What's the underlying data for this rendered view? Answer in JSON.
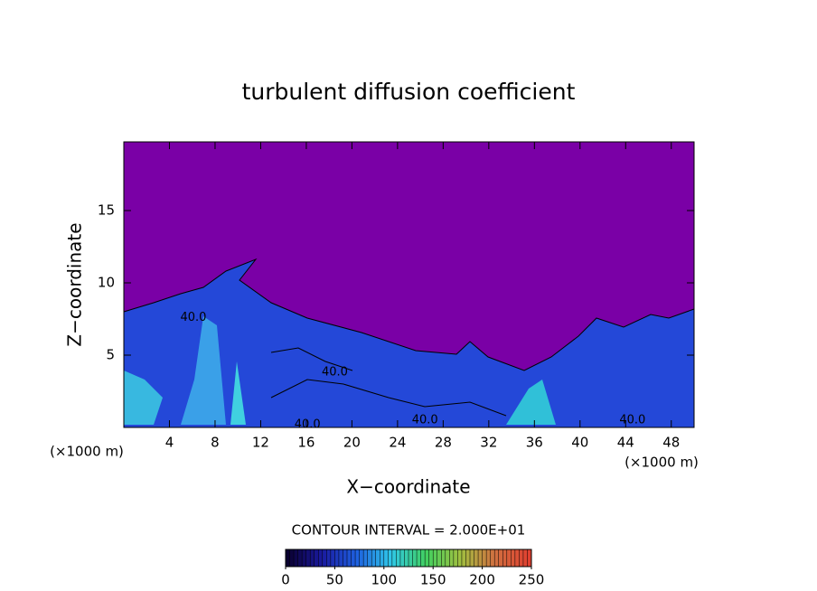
{
  "chart_data": {
    "type": "contour",
    "title": "turbulent diffusion coefficient",
    "xlabel": "X−coordinate",
    "ylabel": "Z−coordinate",
    "x_unit_label": "(×1000 m)",
    "y_unit_label": "(×1000 m)",
    "xlim": [
      0,
      50
    ],
    "ylim": [
      0,
      19.75
    ],
    "xticks": [
      4,
      8,
      12,
      16,
      20,
      24,
      28,
      32,
      36,
      40,
      44,
      48
    ],
    "yticks": [
      5,
      10,
      15
    ],
    "background_color": "#7a00a6",
    "contour_labels": [
      {
        "text": "40.0",
        "x": 6.1,
        "z": 7.6
      },
      {
        "text": "40.0",
        "x": 18.5,
        "z": 3.8
      },
      {
        "text": "40.0",
        "x": 16.1,
        "z": 0.2
      },
      {
        "text": "40.0",
        "x": 26.4,
        "z": 0.5
      },
      {
        "text": "40.0",
        "x": 44.6,
        "z": 0.5
      }
    ],
    "contour_interval_label": "CONTOUR INTERVAL = 2.000E+01",
    "colorbar": {
      "lim": [
        0,
        250
      ],
      "ticks": [
        0,
        50,
        100,
        150,
        200,
        250
      ],
      "colors": [
        "#0a0030",
        "#1a1aa0",
        "#1e60e0",
        "#30c8e8",
        "#40d060",
        "#a0c040",
        "#d07040",
        "#e04030"
      ]
    }
  }
}
